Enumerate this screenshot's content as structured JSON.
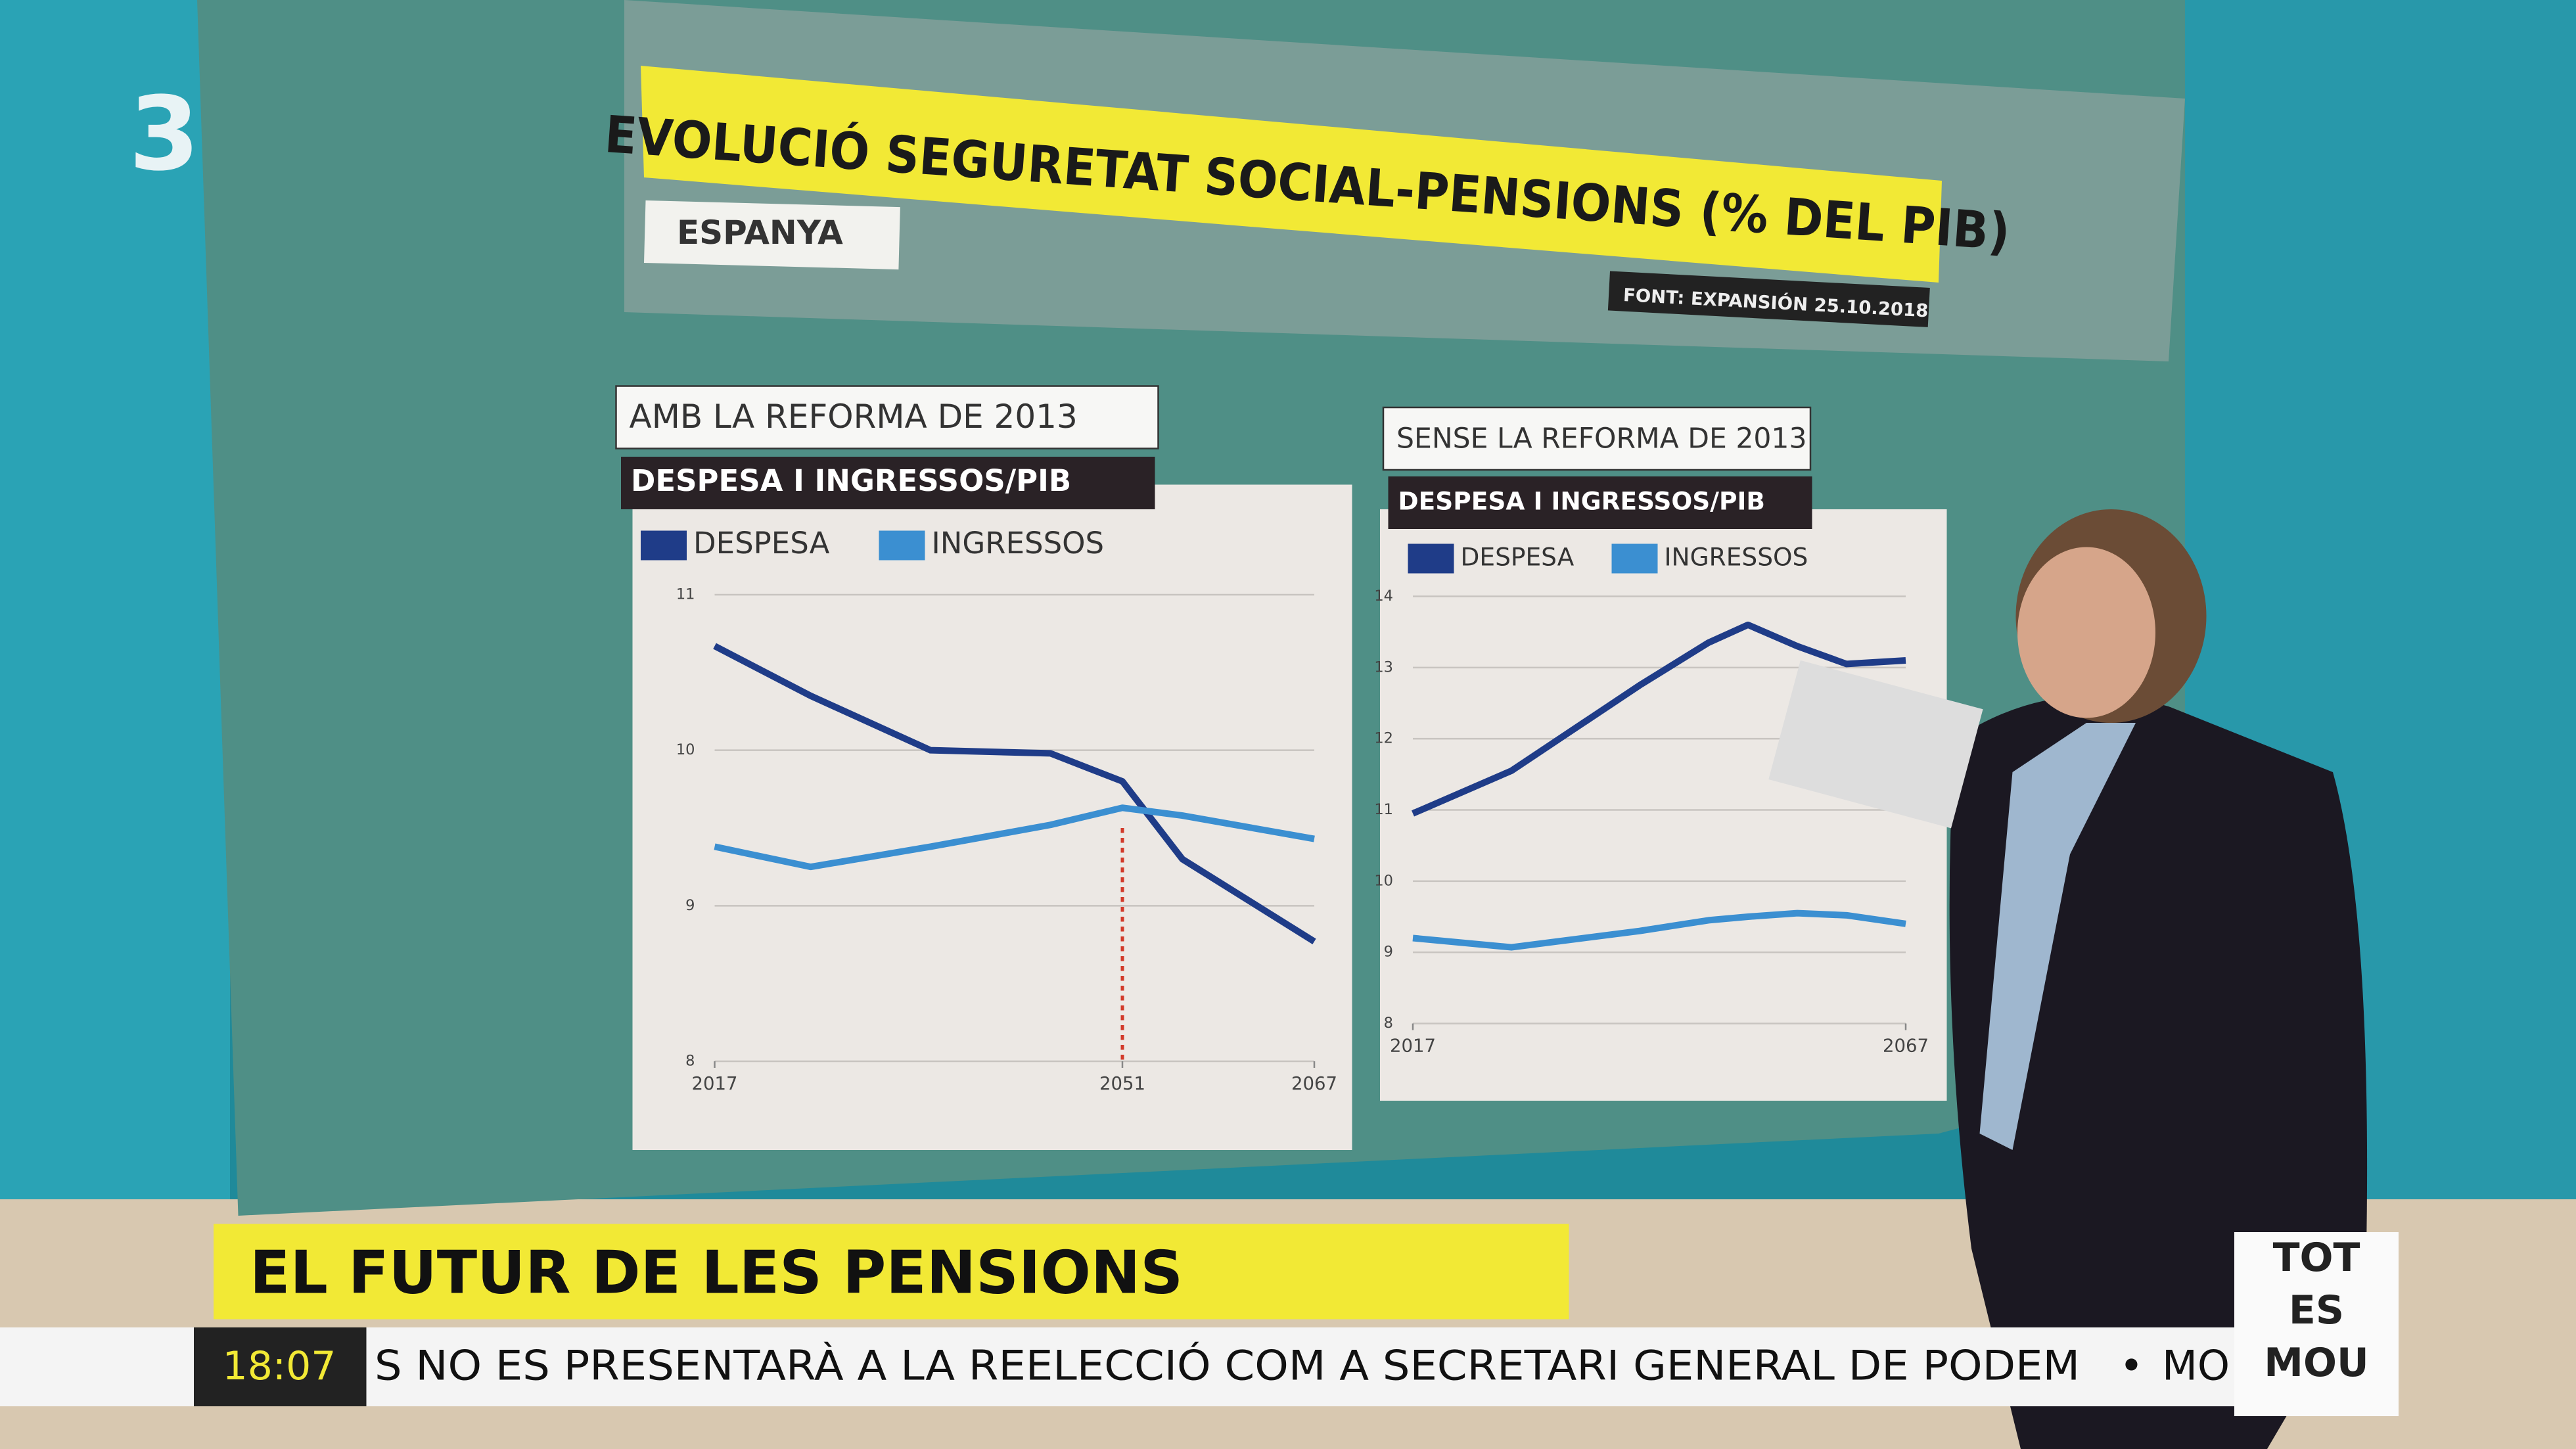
{
  "header": {
    "title": "EVOLUCIÓ SEGURETAT SOCIAL-PENSIONS (% DEL PIB)",
    "region": "ESPANYA",
    "source": "FONT: EXPANSIÓN 25.10.2018"
  },
  "chart_data": [
    {
      "type": "line",
      "title": "AMB LA REFORMA DE 2013",
      "subtitle": "DESPESA I INGRESSOS/PIB",
      "x": [
        2017,
        2025,
        2035,
        2045,
        2051,
        2056,
        2067
      ],
      "series": [
        {
          "name": "DESPESA",
          "color": "#1f3c88",
          "values": [
            10.67,
            10.35,
            10.0,
            9.98,
            9.8,
            9.3,
            8.77
          ]
        },
        {
          "name": "INGRESSOS",
          "color": "#3b8fd1",
          "values": [
            9.38,
            9.25,
            9.38,
            9.52,
            9.63,
            9.58,
            9.43
          ]
        }
      ],
      "xlim": [
        2017,
        2067
      ],
      "xticks": [
        2017,
        2051,
        2067
      ],
      "ylim": [
        8,
        11
      ],
      "yticks": [
        8,
        9,
        10,
        11
      ],
      "grid": true
    },
    {
      "type": "line",
      "title": "SENSE LA REFORMA DE 2013",
      "subtitle": "DESPESA I INGRESSOS/PIB",
      "x": [
        2017,
        2027,
        2040,
        2047,
        2051,
        2056,
        2061,
        2067
      ],
      "series": [
        {
          "name": "DESPESA",
          "color": "#1f3c88",
          "values": [
            10.95,
            11.55,
            12.75,
            13.35,
            13.6,
            13.3,
            13.05,
            13.1
          ]
        },
        {
          "name": "INGRESSOS",
          "color": "#3b8fd1",
          "values": [
            9.2,
            9.07,
            9.3,
            9.45,
            9.5,
            9.55,
            9.52,
            9.4
          ]
        }
      ],
      "xlim": [
        2017,
        2067
      ],
      "xticks": [
        2017,
        2067
      ],
      "ylim": [
        8,
        14
      ],
      "yticks": [
        8,
        9,
        10,
        11,
        12,
        13,
        14
      ],
      "grid": true
    }
  ],
  "lower_third": {
    "headline": "EL FUTUR DE LES PENSIONS",
    "clock": "18:07",
    "ticker": "S NO ES PRESENTARÀ A LA REELECCIÓ COM A SECRETARI GENERAL DE PODEM",
    "separator": "•",
    "ticker_next": "MO"
  },
  "channel": {
    "logo": "3",
    "show": [
      "TOT",
      "ES",
      "MOU"
    ]
  }
}
